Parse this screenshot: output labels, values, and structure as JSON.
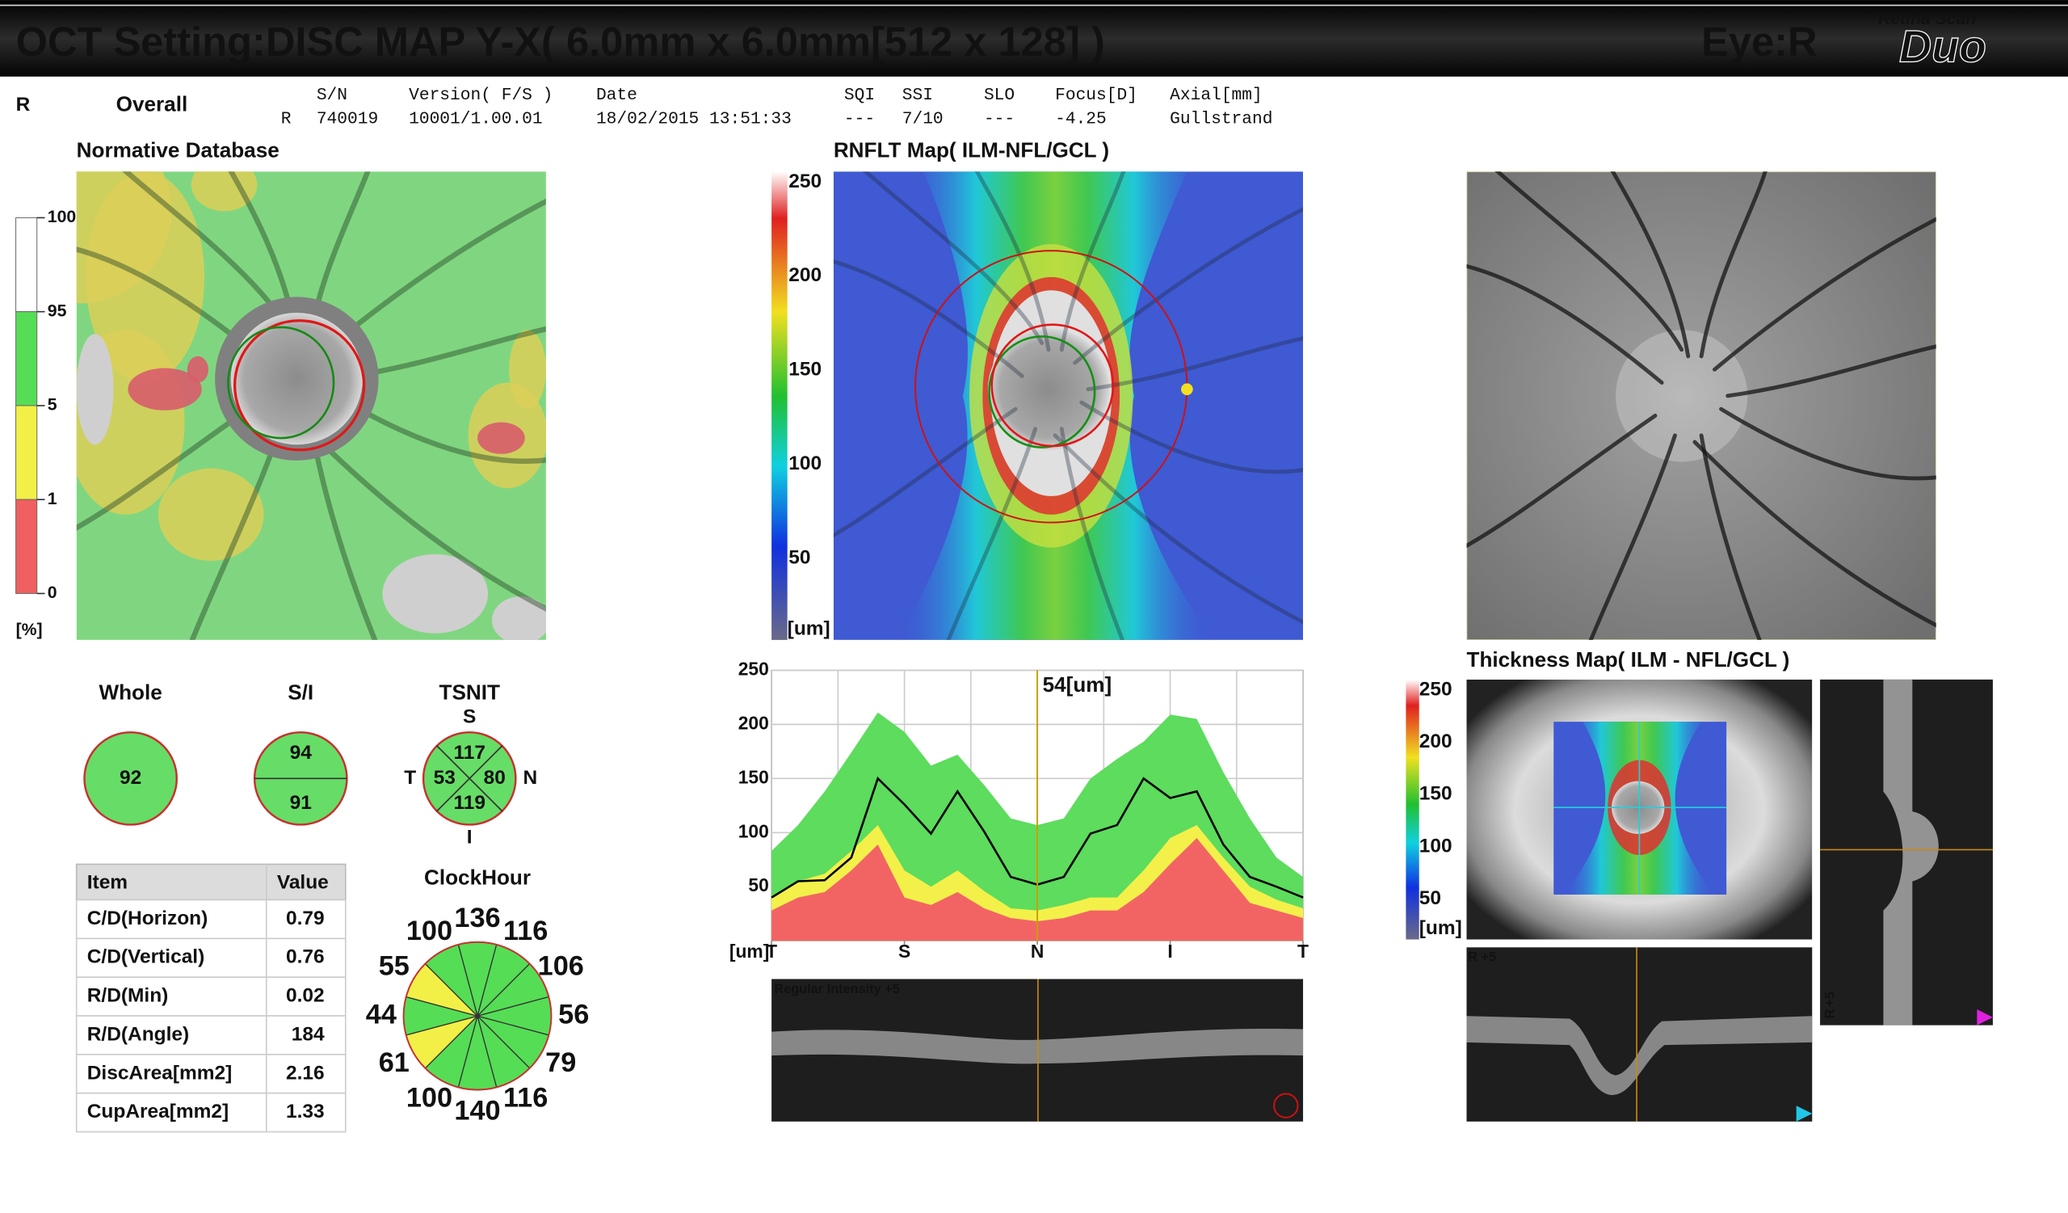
{
  "header": {
    "title": "OCT Setting:DISC MAP Y-X( 6.0mm x 6.0mm[512 x 128] )",
    "eye": "Eye:R",
    "logo_top": "Retina Scan",
    "logo": "Duo"
  },
  "info": {
    "eye": "R",
    "mode": "Overall",
    "row_eye": "R",
    "fields": [
      {
        "label": "S/N",
        "value": "740019"
      },
      {
        "label": "Version( F/S )",
        "value": "10001/1.00.01"
      },
      {
        "label": "Date",
        "value": "18/02/2015 13:51:33"
      },
      {
        "label": "SQI",
        "value": "---"
      },
      {
        "label": "SSI",
        "value": "7/10"
      },
      {
        "label": "SLO",
        "value": "---"
      },
      {
        "label": "Focus[D]",
        "value": "-4.25"
      },
      {
        "label": "Axial[mm]",
        "value": "Gullstrand"
      }
    ]
  },
  "normative": {
    "title": "Normative Database",
    "scale": [
      100,
      95,
      5,
      1,
      0
    ],
    "unit": "[%]"
  },
  "rnflt_map": {
    "title": "RNFLT Map( ILM-NFL/GCL )",
    "scale": [
      250,
      200,
      150,
      100,
      50
    ],
    "unit": "[um]"
  },
  "thickness_map": {
    "title": "Thickness Map( ILM - NFL/GCL )",
    "scale": [
      250,
      200,
      150,
      100,
      50
    ],
    "unit": "[um]"
  },
  "bscan": {
    "mode": "Regular",
    "intensity": "Intensity +5"
  },
  "side_bscan": {
    "eye": "R",
    "intensity": "+5"
  },
  "lower_bscan": {
    "eye": "R",
    "intensity": "+5"
  },
  "sectors": {
    "whole": {
      "title": "Whole",
      "value": 92
    },
    "si": {
      "title": "S/I",
      "superior": 94,
      "inferior": 91
    },
    "tsnit": {
      "title": "TSNIT",
      "label_s": "S",
      "label_t": "T",
      "label_n": "N",
      "label_i": "I",
      "s": 117,
      "t": 53,
      "n": 80,
      "i": 119
    }
  },
  "table": {
    "header": [
      "Item",
      "Value"
    ],
    "rows": [
      [
        "C/D(Horizon)",
        0.79
      ],
      [
        "C/D(Vertical)",
        0.76
      ],
      [
        "R/D(Min)",
        0.02
      ],
      [
        "R/D(Angle)",
        184
      ],
      [
        "DiscArea[mm2]",
        2.16
      ],
      [
        "CupArea[mm2]",
        1.33
      ]
    ]
  },
  "clock_hour": {
    "title": "ClockHour",
    "values": [
      136,
      116,
      106,
      56,
      79,
      116,
      140,
      100,
      61,
      44,
      55,
      100
    ],
    "colors": [
      "#55dd55",
      "#55dd55",
      "#55dd55",
      "#55dd55",
      "#55dd55",
      "#55dd55",
      "#55dd55",
      "#55dd55",
      "#f2f046",
      "#55dd55",
      "#f2f046",
      "#55dd55"
    ]
  },
  "chart_data": {
    "type": "line",
    "annotation": "54[um]",
    "y_label": "[um]",
    "ylim": [
      0,
      250
    ],
    "yticks": [
      50,
      100,
      150,
      200,
      250
    ],
    "grid": true,
    "xlim": [
      0,
      20
    ],
    "xticks": [
      {
        "value": 0,
        "label": "T"
      },
      {
        "value": 5,
        "label": "S"
      },
      {
        "value": 10,
        "label": "N"
      },
      {
        "value": 15,
        "label": "I"
      },
      {
        "value": 20,
        "label": "T"
      }
    ],
    "series": [
      {
        "color": "#5ddc5d",
        "fill": true,
        "values": [
          83,
          107,
          138,
          174,
          211,
          193,
          162,
          172,
          144,
          113,
          107,
          113,
          150,
          168,
          184,
          209,
          205,
          156,
          113,
          77,
          59
        ]
      },
      {
        "color": "#f4f04a",
        "fill": true,
        "values": [
          40,
          55,
          62,
          83,
          107,
          65,
          50,
          65,
          46,
          30,
          28,
          33,
          40,
          40,
          65,
          95,
          107,
          77,
          50,
          38,
          30
        ]
      },
      {
        "color": "#f26464",
        "fill": true,
        "values": [
          28,
          40,
          45,
          65,
          89,
          40,
          33,
          45,
          30,
          21,
          18,
          21,
          28,
          28,
          45,
          71,
          95,
          65,
          35,
          28,
          21
        ]
      },
      {
        "color": "#000000",
        "fill": false,
        "values": [
          40,
          55,
          56,
          77,
          150,
          126,
          99,
          138,
          101,
          59,
          52,
          59,
          99,
          107,
          150,
          132,
          138,
          89,
          59,
          50,
          40
        ]
      }
    ]
  }
}
